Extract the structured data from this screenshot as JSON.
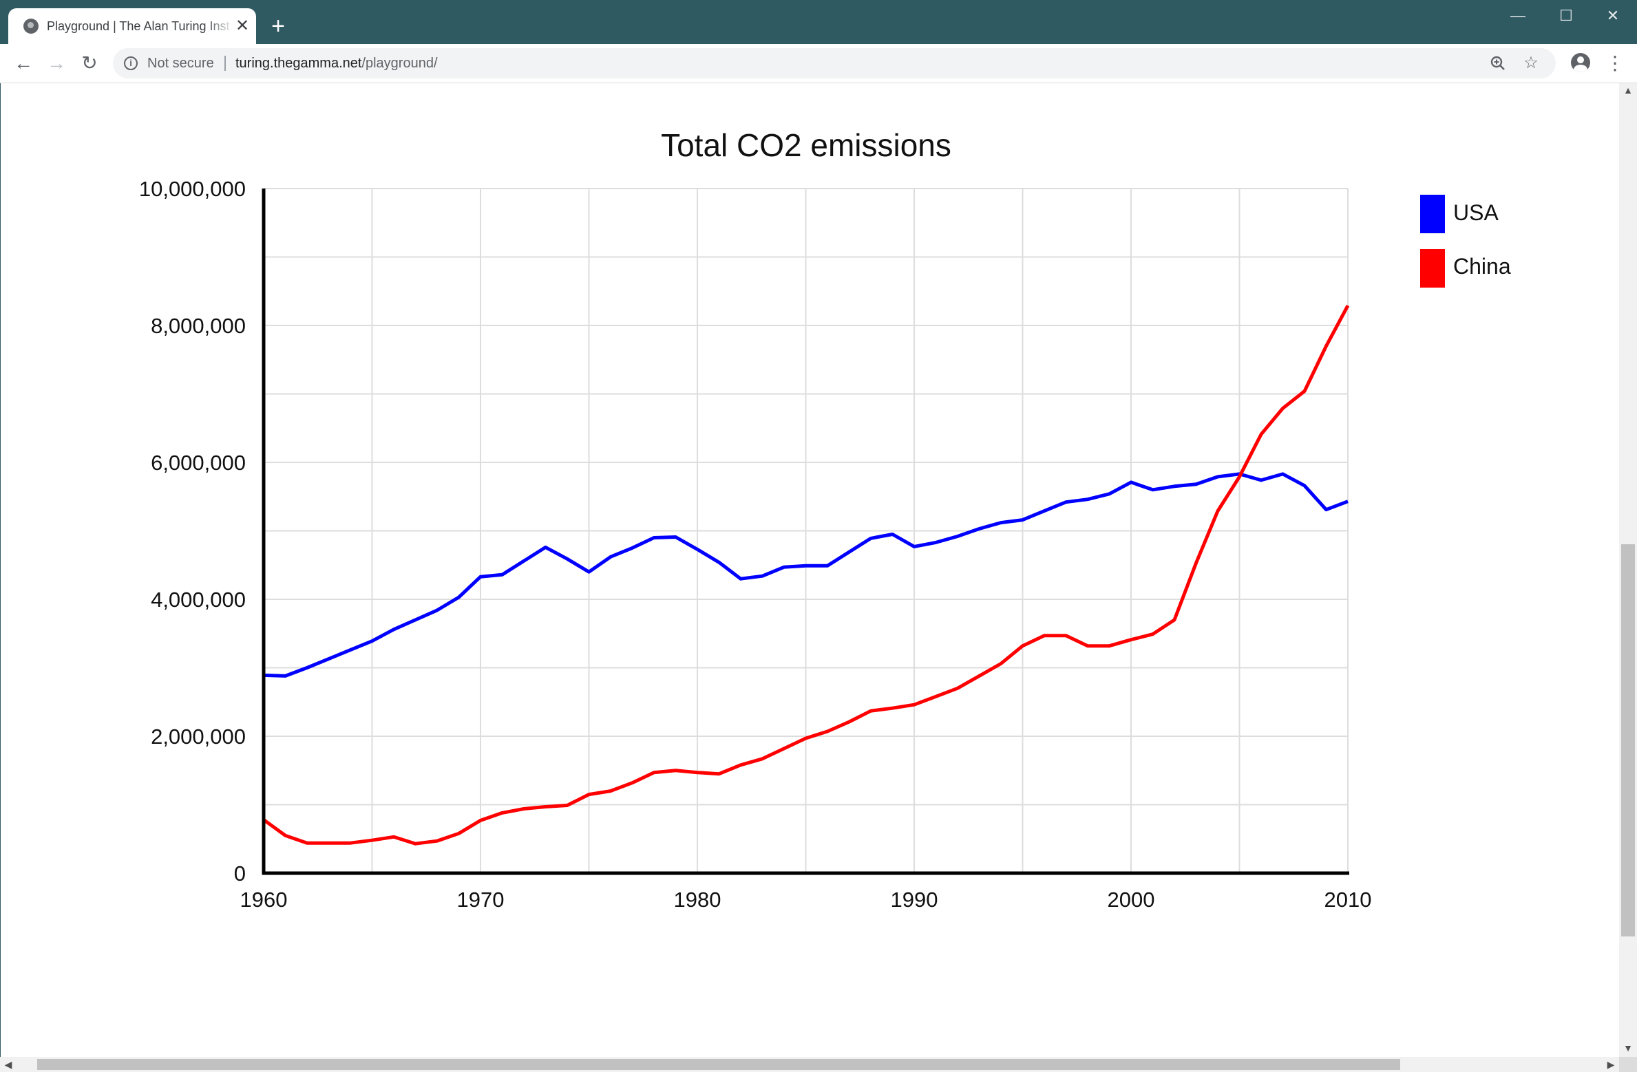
{
  "browser": {
    "tab_title": "Playground | The Alan Turing Inst",
    "tab_close": "✕",
    "new_tab": "+",
    "window_controls": {
      "minimize": "—",
      "maximize": "☐",
      "close": "✕"
    },
    "nav": {
      "back": "←",
      "forward": "→",
      "reload": "↻"
    },
    "security_label": "Not secure",
    "url_host": "turing.thegamma.net",
    "url_path": "/playground/",
    "icons": [
      "globe-icon",
      "info-icon",
      "zoom-icon",
      "star-icon",
      "account-icon",
      "more-menu-icon"
    ]
  },
  "colors": {
    "titlebar": "#2f5a62",
    "usa": "#0000ff",
    "china": "#ff0000",
    "grid": "#dddddd",
    "axis": "#000000"
  },
  "chart_data": {
    "type": "line",
    "title": "Total CO2 emissions",
    "xlabel": "",
    "ylabel": "",
    "xlim": [
      1960,
      2010
    ],
    "ylim": [
      0,
      10000000
    ],
    "x_ticks": [
      1960,
      1970,
      1980,
      1990,
      2000,
      2010
    ],
    "x_tick_labels": [
      "1960",
      "1970",
      "1980",
      "1990",
      "2000",
      "2010"
    ],
    "y_ticks": [
      0,
      2000000,
      4000000,
      6000000,
      8000000,
      10000000
    ],
    "y_tick_labels": [
      "0",
      "2,000,000",
      "4,000,000",
      "6,000,000",
      "8,000,000",
      "10,000,000"
    ],
    "grid": true,
    "legend_position": "right",
    "x": [
      1960,
      1961,
      1962,
      1963,
      1964,
      1965,
      1966,
      1967,
      1968,
      1969,
      1970,
      1971,
      1972,
      1973,
      1974,
      1975,
      1976,
      1977,
      1978,
      1979,
      1980,
      1981,
      1982,
      1983,
      1984,
      1985,
      1986,
      1987,
      1988,
      1989,
      1990,
      1991,
      1992,
      1993,
      1994,
      1995,
      1996,
      1997,
      1998,
      1999,
      2000,
      2001,
      2002,
      2003,
      2004,
      2005,
      2006,
      2007,
      2008,
      2009,
      2010
    ],
    "series": [
      {
        "name": "USA",
        "color": "#0000ff",
        "values": [
          2890000,
          2880000,
          3000000,
          3130000,
          3260000,
          3390000,
          3560000,
          3700000,
          3840000,
          4030000,
          4330000,
          4360000,
          4560000,
          4760000,
          4590000,
          4400000,
          4620000,
          4750000,
          4900000,
          4910000,
          4730000,
          4540000,
          4300000,
          4340000,
          4470000,
          4490000,
          4490000,
          4690000,
          4890000,
          4950000,
          4770000,
          4830000,
          4920000,
          5030000,
          5120000,
          5160000,
          5290000,
          5420000,
          5460000,
          5540000,
          5710000,
          5600000,
          5650000,
          5680000,
          5790000,
          5830000,
          5740000,
          5830000,
          5660000,
          5310000,
          5430000
        ]
      },
      {
        "name": "China",
        "color": "#ff0000",
        "values": [
          780000,
          550000,
          440000,
          440000,
          440000,
          480000,
          530000,
          430000,
          470000,
          580000,
          770000,
          880000,
          940000,
          970000,
          990000,
          1150000,
          1200000,
          1320000,
          1470000,
          1500000,
          1470000,
          1450000,
          1580000,
          1670000,
          1820000,
          1970000,
          2070000,
          2210000,
          2370000,
          2410000,
          2460000,
          2580000,
          2700000,
          2880000,
          3060000,
          3320000,
          3470000,
          3470000,
          3320000,
          3320000,
          3410000,
          3490000,
          3700000,
          4530000,
          5290000,
          5790000,
          6410000,
          6790000,
          7040000,
          7700000,
          8290000
        ]
      }
    ]
  }
}
